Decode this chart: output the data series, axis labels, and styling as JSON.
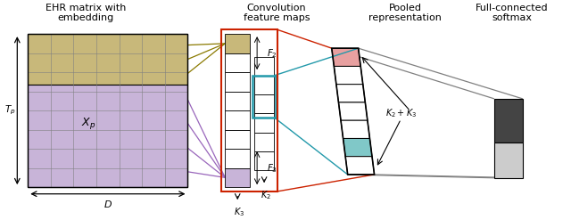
{
  "bg_color": "#ffffff",
  "colors": {
    "khaki": "#c8b87a",
    "purple": "#c8b4d8",
    "red": "#cc2200",
    "teal": "#2299aa",
    "olive": "#8b7a00",
    "purple_line": "#9966bb",
    "pink": "#e8a0a0",
    "light_teal": "#80c8c8",
    "dark_gray": "#444444",
    "light_gray": "#cccccc",
    "white": "#ffffff",
    "black": "#000000",
    "gray": "#888888"
  },
  "labels": {
    "ehr": "EHR matrix with\nembedding",
    "conv": "Convolution\nfeature maps",
    "pooled": "Pooled\nrepresentation",
    "fc": "Full-connected\nsoftmax"
  }
}
